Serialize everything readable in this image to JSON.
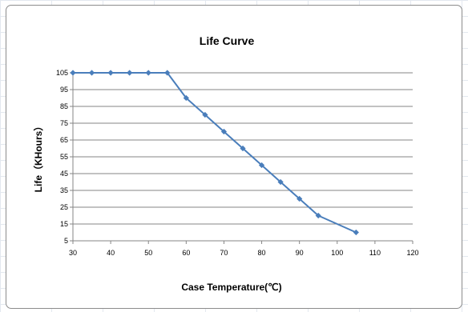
{
  "chart_data": {
    "type": "line",
    "title": "Life Curve",
    "xlabel": "Case  Temperature(℃)",
    "ylabel": "Life（KHours）",
    "xlim": [
      30,
      120
    ],
    "ylim": [
      5,
      105
    ],
    "xticks": [
      30,
      40,
      50,
      60,
      70,
      80,
      90,
      100,
      110,
      120
    ],
    "yticks": [
      5,
      15,
      25,
      35,
      45,
      55,
      65,
      75,
      85,
      95,
      105
    ],
    "grid": "horizontal",
    "legend": "none",
    "series": [
      {
        "x": [
          30,
          35,
          40,
          45,
          50,
          55,
          60,
          65,
          70,
          75,
          80,
          85,
          90,
          95,
          105
        ],
        "y": [
          105,
          105,
          105,
          105,
          105,
          105,
          90,
          80,
          70,
          60,
          50,
          40,
          30,
          20,
          10
        ],
        "color": "#4a7ebb"
      }
    ]
  }
}
